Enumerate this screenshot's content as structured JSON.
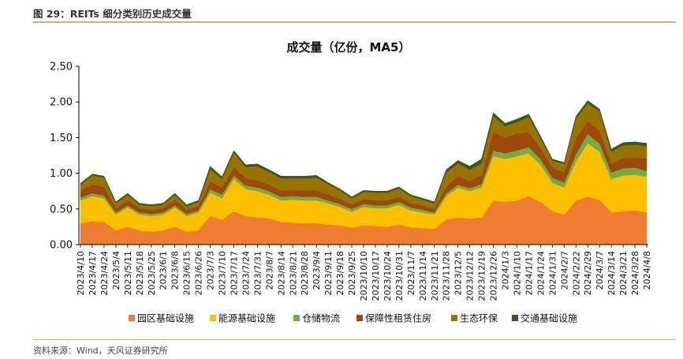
{
  "figure_title": "图 29：REITs 细分类别历史成交量",
  "source_note": "资料来源：Wind，天风证券研究所",
  "chart_data": {
    "type": "area",
    "title": "成交量（亿份，MA5）",
    "ylim": [
      0,
      2.5
    ],
    "yticks": [
      "0.00",
      "0.50",
      "1.00",
      "1.50",
      "2.00",
      "2.50"
    ],
    "legend_position": "bottom",
    "grid": false,
    "x": [
      "2023/4/10",
      "2023/4/17",
      "2023/4/24",
      "2023/5/4",
      "2023/5/11",
      "2023/5/18",
      "2023/5/25",
      "2023/6/1",
      "2023/6/8",
      "2023/6/15",
      "2023/6/26",
      "2023/7/3",
      "2023/7/10",
      "2023/7/17",
      "2023/7/24",
      "2023/7/31",
      "2023/8/7",
      "2023/8/14",
      "2023/8/21",
      "2023/8/28",
      "2023/9/4",
      "2023/9/11",
      "2023/9/18",
      "2023/9/25",
      "2023/10/10",
      "2023/10/17",
      "2023/10/24",
      "2023/10/31",
      "2023/11/7",
      "2023/11/14",
      "2023/11/21",
      "2023/11/28",
      "2023/12/5",
      "2023/12/12",
      "2023/12/19",
      "2023/12/26",
      "2024/1/3",
      "2024/1/10",
      "2024/1/17",
      "2024/1/24",
      "2024/1/31",
      "2024/2/7",
      "2024/2/22",
      "2024/2/29",
      "2024/3/7",
      "2024/3/14",
      "2024/3/21",
      "2024/3/28",
      "2024/4/8"
    ],
    "series": [
      {
        "name": "园区基础设施",
        "color": "#ED7D31",
        "values": [
          0.3,
          0.33,
          0.32,
          0.2,
          0.25,
          0.2,
          0.18,
          0.2,
          0.25,
          0.18,
          0.2,
          0.4,
          0.35,
          0.47,
          0.4,
          0.38,
          0.37,
          0.32,
          0.31,
          0.3,
          0.3,
          0.28,
          0.27,
          0.24,
          0.27,
          0.26,
          0.25,
          0.28,
          0.24,
          0.23,
          0.22,
          0.35,
          0.38,
          0.37,
          0.38,
          0.62,
          0.6,
          0.62,
          0.68,
          0.6,
          0.47,
          0.42,
          0.62,
          0.67,
          0.63,
          0.45,
          0.47,
          0.48,
          0.45
        ]
      },
      {
        "name": "能源基础设施",
        "color": "#FFC000",
        "values": [
          0.32,
          0.35,
          0.33,
          0.22,
          0.27,
          0.22,
          0.22,
          0.22,
          0.27,
          0.22,
          0.25,
          0.33,
          0.3,
          0.45,
          0.38,
          0.37,
          0.33,
          0.3,
          0.32,
          0.32,
          0.32,
          0.3,
          0.26,
          0.22,
          0.26,
          0.25,
          0.26,
          0.28,
          0.24,
          0.22,
          0.2,
          0.33,
          0.42,
          0.38,
          0.42,
          0.62,
          0.6,
          0.62,
          0.6,
          0.52,
          0.4,
          0.38,
          0.55,
          0.75,
          0.67,
          0.47,
          0.5,
          0.5,
          0.5
        ]
      },
      {
        "name": "仓储物流",
        "color": "#70AD47",
        "values": [
          0.04,
          0.04,
          0.04,
          0.03,
          0.03,
          0.03,
          0.03,
          0.03,
          0.03,
          0.03,
          0.03,
          0.05,
          0.05,
          0.05,
          0.05,
          0.05,
          0.05,
          0.05,
          0.05,
          0.05,
          0.05,
          0.04,
          0.04,
          0.04,
          0.04,
          0.04,
          0.04,
          0.04,
          0.04,
          0.04,
          0.03,
          0.04,
          0.04,
          0.04,
          0.05,
          0.08,
          0.08,
          0.08,
          0.09,
          0.08,
          0.07,
          0.07,
          0.1,
          0.13,
          0.12,
          0.09,
          0.1,
          0.1,
          0.08
        ]
      },
      {
        "name": "保障性租赁住房",
        "color": "#9E480E",
        "values": [
          0.1,
          0.12,
          0.12,
          0.06,
          0.07,
          0.06,
          0.06,
          0.06,
          0.08,
          0.06,
          0.06,
          0.1,
          0.1,
          0.12,
          0.1,
          0.1,
          0.09,
          0.09,
          0.09,
          0.09,
          0.09,
          0.08,
          0.07,
          0.06,
          0.07,
          0.07,
          0.07,
          0.07,
          0.06,
          0.06,
          0.05,
          0.09,
          0.12,
          0.1,
          0.12,
          0.26,
          0.22,
          0.24,
          0.2,
          0.15,
          0.14,
          0.14,
          0.22,
          0.18,
          0.18,
          0.12,
          0.14,
          0.14,
          0.18
        ]
      },
      {
        "name": "生态环保",
        "color": "#997300",
        "values": [
          0.08,
          0.13,
          0.13,
          0.07,
          0.08,
          0.05,
          0.05,
          0.05,
          0.07,
          0.05,
          0.06,
          0.18,
          0.12,
          0.2,
          0.16,
          0.2,
          0.18,
          0.17,
          0.16,
          0.17,
          0.18,
          0.15,
          0.12,
          0.09,
          0.1,
          0.11,
          0.11,
          0.12,
          0.1,
          0.08,
          0.08,
          0.2,
          0.18,
          0.16,
          0.17,
          0.22,
          0.16,
          0.16,
          0.22,
          0.14,
          0.1,
          0.12,
          0.28,
          0.25,
          0.27,
          0.17,
          0.18,
          0.18,
          0.17
        ]
      },
      {
        "name": "交通基础设施",
        "color": "#385723",
        "values": [
          0.02,
          0.02,
          0.02,
          0.02,
          0.02,
          0.02,
          0.02,
          0.02,
          0.02,
          0.02,
          0.02,
          0.04,
          0.03,
          0.03,
          0.03,
          0.03,
          0.03,
          0.03,
          0.03,
          0.03,
          0.03,
          0.02,
          0.02,
          0.02,
          0.02,
          0.02,
          0.02,
          0.02,
          0.02,
          0.02,
          0.02,
          0.04,
          0.04,
          0.05,
          0.06,
          0.05,
          0.04,
          0.04,
          0.04,
          0.03,
          0.02,
          0.02,
          0.03,
          0.04,
          0.03,
          0.04,
          0.04,
          0.04,
          0.04
        ]
      }
    ]
  }
}
